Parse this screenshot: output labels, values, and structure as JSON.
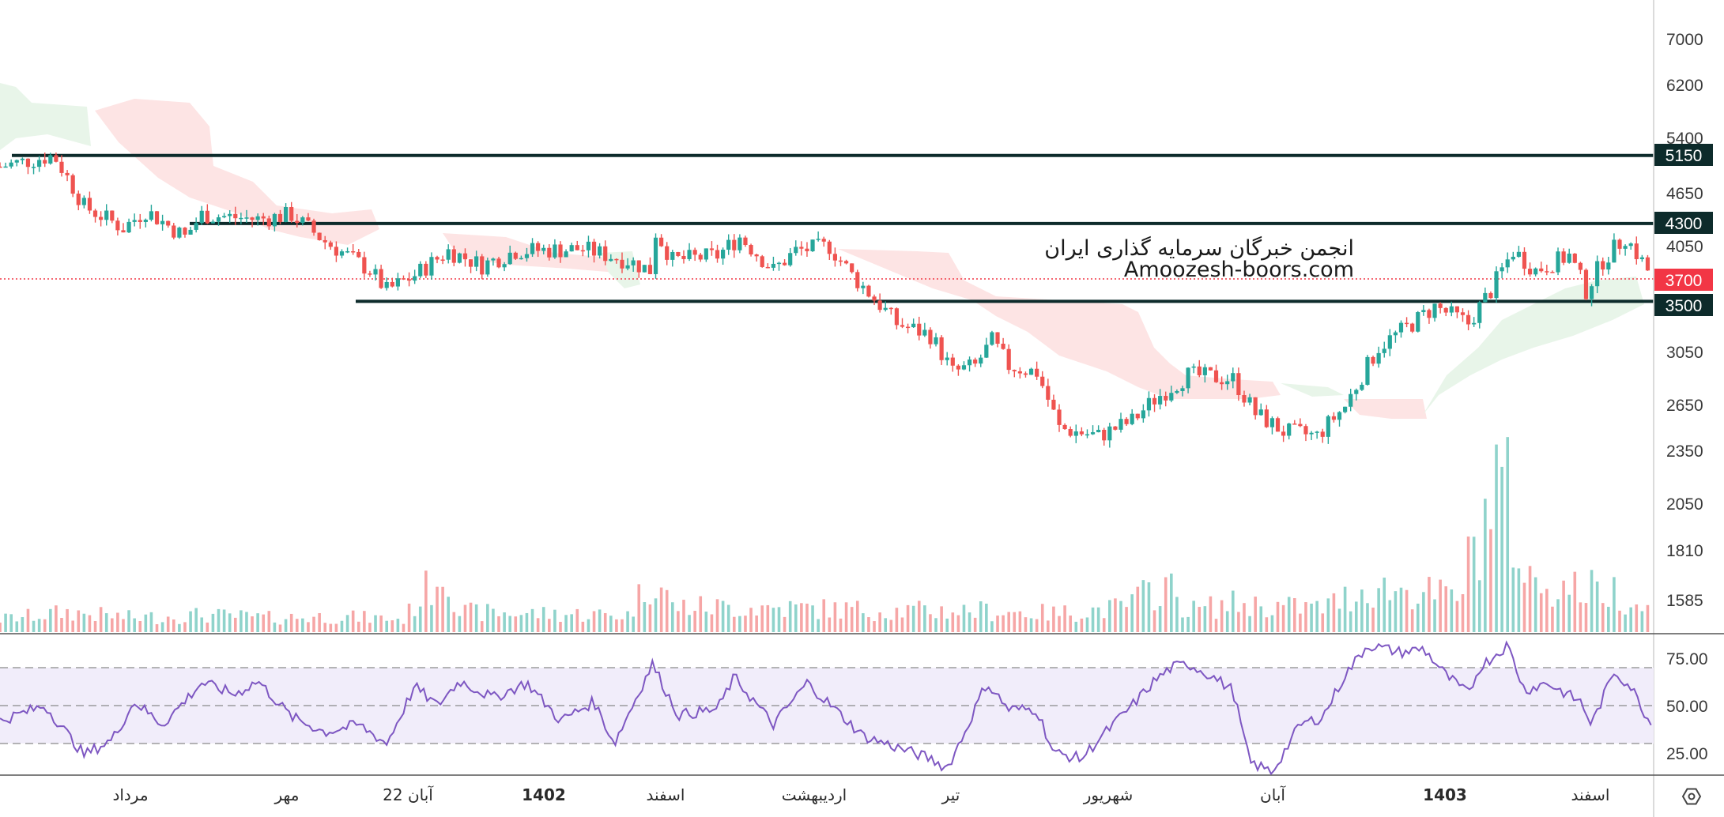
{
  "watermark": {
    "line1": "انجمن خبرگان سرمایه گذاری ایران",
    "line2": "Amoozesh-boors.com"
  },
  "colors": {
    "up": "#26a69a",
    "down": "#ef5350",
    "level_line": "#0d2b2b",
    "current_price": "#f23645",
    "cloud_bull": "#e8f5e9",
    "cloud_bear": "#fde4e4",
    "rsi_line": "#7e57c2",
    "rsi_band": "#f1edfa"
  },
  "settings_icon": "hexagon-gear-icon",
  "chart_data": {
    "type": "candlestick",
    "y_ticks": [
      "7000",
      "6200",
      "5400",
      "4650",
      "4050",
      "3050",
      "2650",
      "2350",
      "2050",
      "1810",
      "1585"
    ],
    "levels": [
      {
        "label": "5150",
        "value": 5150
      },
      {
        "label": "4300",
        "value": 4300
      }
    ],
    "support": {
      "label": "3500",
      "value": 3500
    },
    "current_price": {
      "label": "3700",
      "value": 3700
    },
    "x_labels": [
      {
        "text": "مرداد",
        "bold": false
      },
      {
        "text": "مهر",
        "bold": false
      },
      {
        "text": "22 آبان",
        "bold": false
      },
      {
        "text": "1402",
        "bold": true
      },
      {
        "text": "اسفند",
        "bold": false
      },
      {
        "text": "اردیبهشت",
        "bold": false
      },
      {
        "text": "تیر",
        "bold": false
      },
      {
        "text": "شهریور",
        "bold": false
      },
      {
        "text": "آبان",
        "bold": false
      },
      {
        "text": "1403",
        "bold": true
      },
      {
        "text": "اسفند",
        "bold": false
      }
    ],
    "rsi": {
      "ticks": [
        "75.00",
        "50.00",
        "25.00"
      ],
      "upper": 70,
      "mid": 50,
      "lower": 30
    },
    "price_anchors": [
      [
        0,
        5000
      ],
      [
        48,
        5150
      ],
      [
        75,
        4500
      ],
      [
        110,
        4250
      ],
      [
        130,
        4450
      ],
      [
        165,
        4150
      ],
      [
        180,
        4400
      ],
      [
        230,
        4350
      ],
      [
        260,
        4400
      ],
      [
        290,
        4100
      ],
      [
        330,
        3800
      ],
      [
        345,
        3600
      ],
      [
        370,
        3750
      ],
      [
        400,
        4000
      ],
      [
        430,
        3850
      ],
      [
        460,
        4000
      ],
      [
        520,
        4020
      ],
      [
        560,
        3900
      ],
      [
        580,
        3800
      ],
      [
        585,
        4200
      ],
      [
        600,
        3900
      ],
      [
        640,
        3950
      ],
      [
        660,
        4150
      ],
      [
        690,
        3800
      ],
      [
        710,
        4000
      ],
      [
        740,
        4050
      ],
      [
        760,
        3750
      ],
      [
        800,
        3300
      ],
      [
        830,
        3200
      ],
      [
        850,
        2900
      ],
      [
        870,
        2950
      ],
      [
        885,
        3150
      ],
      [
        900,
        2950
      ],
      [
        925,
        2900
      ],
      [
        945,
        2500
      ],
      [
        980,
        2450
      ],
      [
        1010,
        2550
      ],
      [
        1030,
        2700
      ],
      [
        1060,
        2880
      ],
      [
        1100,
        2850
      ],
      [
        1120,
        2600
      ],
      [
        1145,
        2480
      ],
      [
        1175,
        2450
      ],
      [
        1200,
        2650
      ],
      [
        1230,
        3100
      ],
      [
        1260,
        3300
      ],
      [
        1280,
        3450
      ],
      [
        1310,
        3300
      ],
      [
        1330,
        3600
      ],
      [
        1350,
        4000
      ],
      [
        1370,
        3800
      ],
      [
        1400,
        3950
      ],
      [
        1415,
        3600
      ],
      [
        1430,
        3900
      ],
      [
        1450,
        4150
      ],
      [
        1470,
        3800
      ],
      [
        1473,
        3700
      ]
    ],
    "volume_anchors": [
      [
        0,
        18
      ],
      [
        60,
        28
      ],
      [
        120,
        20
      ],
      [
        180,
        24
      ],
      [
        240,
        20
      ],
      [
        300,
        22
      ],
      [
        360,
        18
      ],
      [
        398,
        95
      ],
      [
        410,
        28
      ],
      [
        480,
        26
      ],
      [
        560,
        24
      ],
      [
        583,
        82
      ],
      [
        600,
        36
      ],
      [
        700,
        34
      ],
      [
        800,
        30
      ],
      [
        880,
        30
      ],
      [
        940,
        26
      ],
      [
        1000,
        34
      ],
      [
        1040,
        68
      ],
      [
        1060,
        30
      ],
      [
        1100,
        40
      ],
      [
        1140,
        36
      ],
      [
        1180,
        34
      ],
      [
        1220,
        62
      ],
      [
        1260,
        58
      ],
      [
        1300,
        48
      ],
      [
        1339,
        230
      ],
      [
        1360,
        75
      ],
      [
        1400,
        62
      ],
      [
        1440,
        58
      ],
      [
        1473,
        30
      ]
    ],
    "rsi_anchors": [
      [
        0,
        42
      ],
      [
        40,
        50
      ],
      [
        75,
        24
      ],
      [
        100,
        32
      ],
      [
        120,
        52
      ],
      [
        145,
        40
      ],
      [
        180,
        62
      ],
      [
        210,
        56
      ],
      [
        230,
        63
      ],
      [
        260,
        44
      ],
      [
        290,
        36
      ],
      [
        320,
        40
      ],
      [
        345,
        30
      ],
      [
        370,
        60
      ],
      [
        390,
        50
      ],
      [
        410,
        63
      ],
      [
        440,
        54
      ],
      [
        470,
        62
      ],
      [
        500,
        42
      ],
      [
        530,
        52
      ],
      [
        548,
        30
      ],
      [
        582,
        72
      ],
      [
        605,
        45
      ],
      [
        640,
        48
      ],
      [
        655,
        65
      ],
      [
        690,
        40
      ],
      [
        720,
        62
      ],
      [
        745,
        48
      ],
      [
        770,
        34
      ],
      [
        800,
        28
      ],
      [
        830,
        22
      ],
      [
        845,
        17
      ],
      [
        860,
        35
      ],
      [
        880,
        62
      ],
      [
        900,
        48
      ],
      [
        925,
        48
      ],
      [
        940,
        25
      ],
      [
        965,
        22
      ],
      [
        980,
        32
      ],
      [
        1010,
        50
      ],
      [
        1030,
        63
      ],
      [
        1045,
        70
      ],
      [
        1060,
        72
      ],
      [
        1080,
        66
      ],
      [
        1100,
        58
      ],
      [
        1115,
        20
      ],
      [
        1135,
        15
      ],
      [
        1160,
        40
      ],
      [
        1180,
        44
      ],
      [
        1200,
        66
      ],
      [
        1220,
        82
      ],
      [
        1250,
        78
      ],
      [
        1270,
        80
      ],
      [
        1290,
        66
      ],
      [
        1310,
        56
      ],
      [
        1320,
        70
      ],
      [
        1345,
        82
      ],
      [
        1360,
        58
      ],
      [
        1380,
        62
      ],
      [
        1410,
        52
      ],
      [
        1420,
        40
      ],
      [
        1440,
        68
      ],
      [
        1455,
        60
      ],
      [
        1473,
        40
      ]
    ]
  }
}
